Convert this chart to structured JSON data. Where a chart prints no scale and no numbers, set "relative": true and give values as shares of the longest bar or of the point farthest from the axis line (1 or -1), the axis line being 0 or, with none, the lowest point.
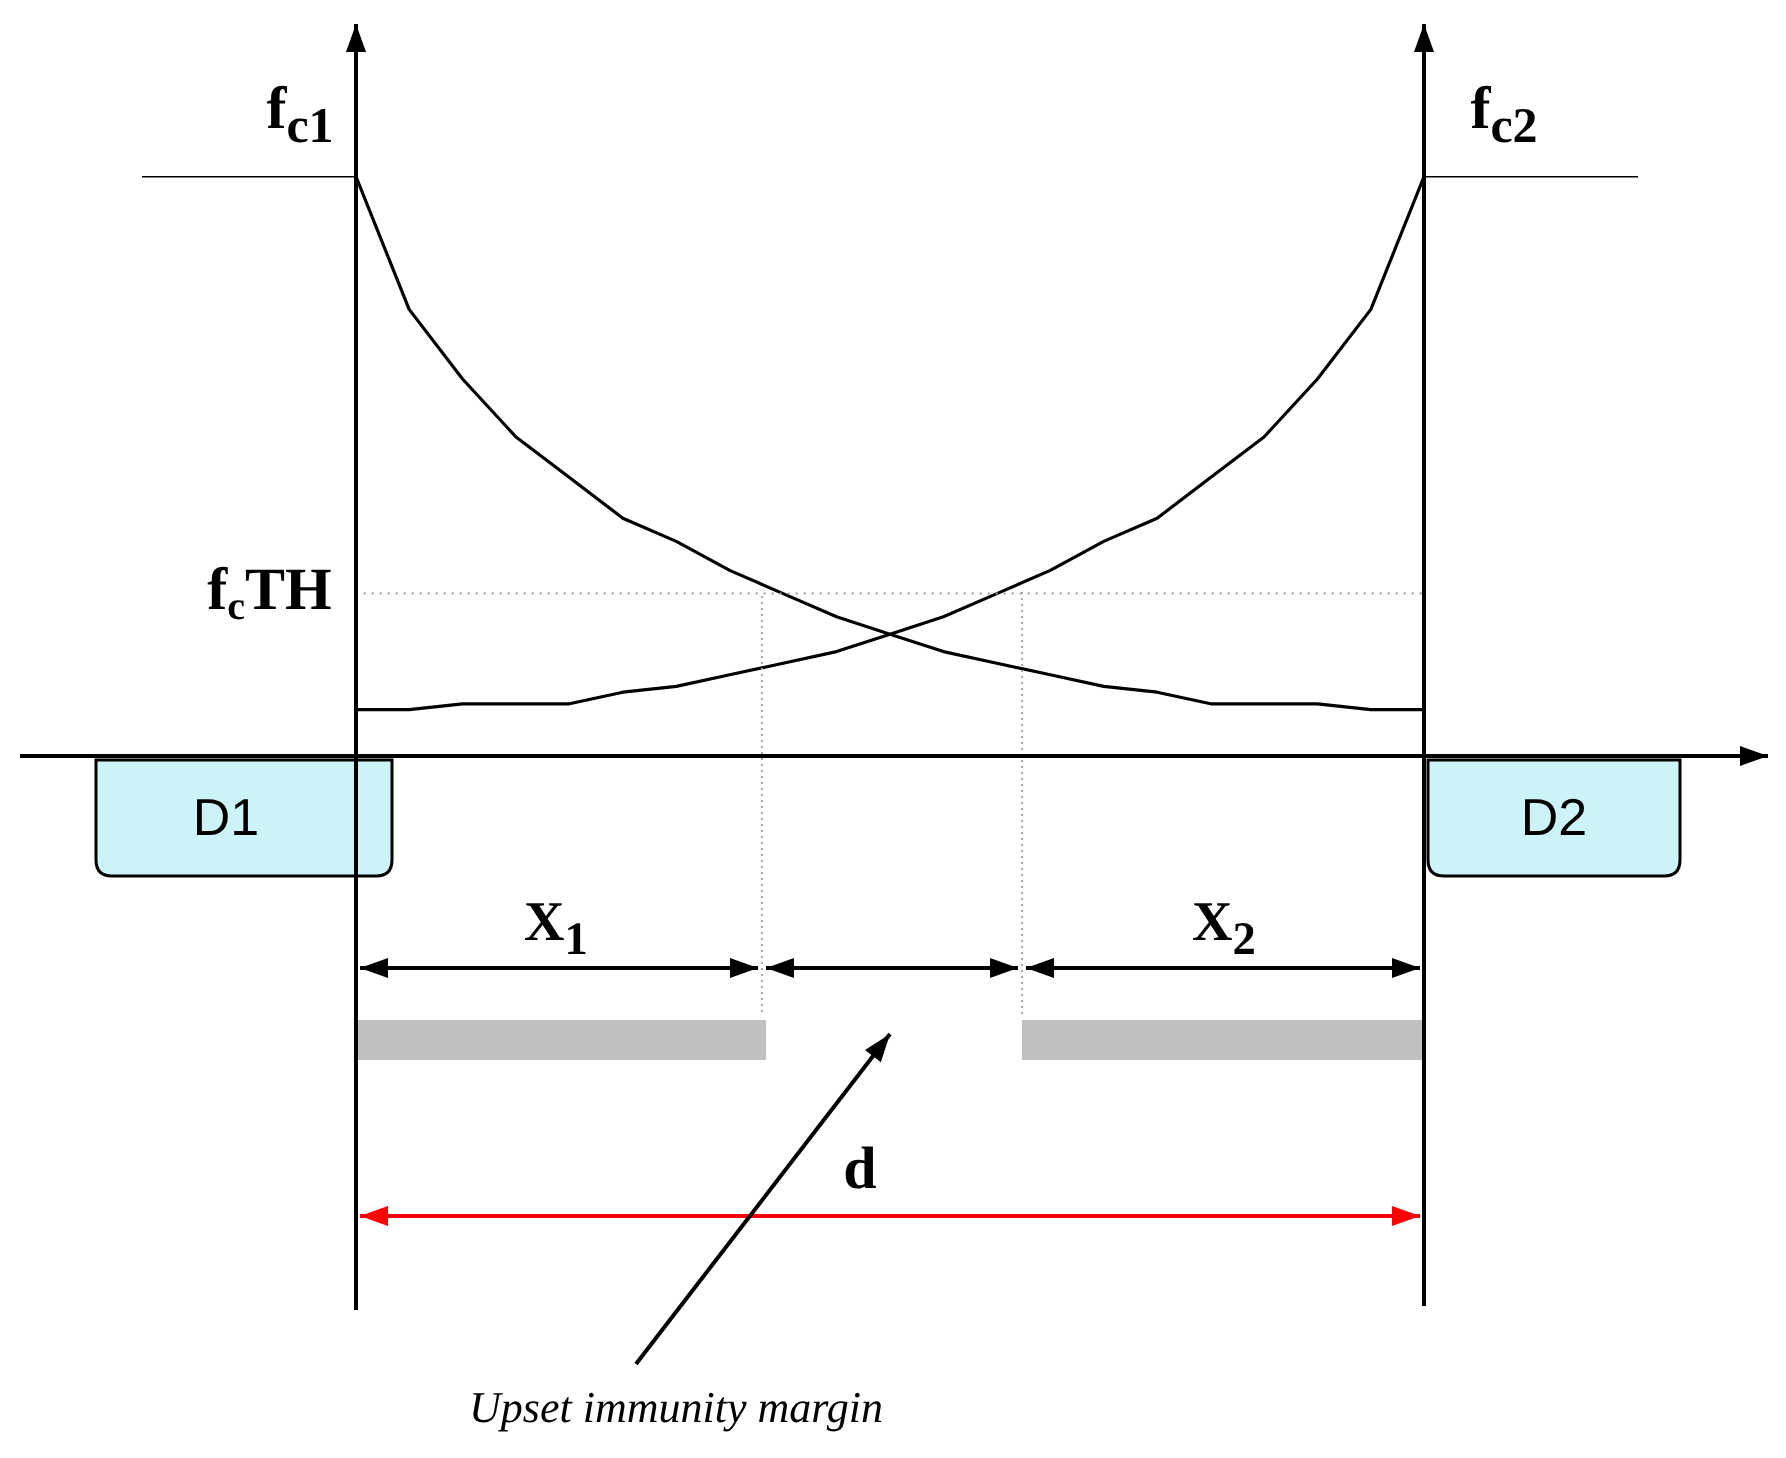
{
  "chart_data": {
    "type": "line",
    "relative": true,
    "categories": [
      null,
      null,
      null,
      null,
      null,
      null,
      null,
      null,
      null,
      null,
      null,
      null,
      null,
      null,
      null,
      null,
      null,
      null,
      null,
      null,
      null,
      null,
      null,
      null,
      null,
      null,
      null,
      null,
      null
    ],
    "series": [
      {
        "color": "#000000",
        "values": [
          1,
          1,
          1,
          1,
          1,
          0.77,
          0.65,
          0.55,
          0.48,
          0.41,
          0.37,
          0.32,
          0.28,
          0.24,
          0.21,
          0.18,
          0.16,
          0.14,
          0.12,
          0.11,
          0.09,
          0.09,
          0.09,
          0.08,
          0.08,
          null,
          null,
          null,
          null
        ]
      },
      {
        "color": "#000000",
        "values": [
          null,
          null,
          null,
          null,
          0.08,
          0.08,
          0.09,
          0.09,
          0.09,
          0.11,
          0.12,
          0.14,
          0.16,
          0.18,
          0.21,
          0.24,
          0.28,
          0.32,
          0.37,
          0.41,
          0.48,
          0.55,
          0.65,
          0.77,
          1,
          1,
          1,
          1,
          1
        ]
      }
    ],
    "marker": "none",
    "line_style": "solid",
    "ref_lines": [
      {
        "axis": "y",
        "value": 0.28,
        "label": "f$_{c}$TH",
        "color": "#999999",
        "line_style": "dotted"
      }
    ],
    "annotations": [
      "f$_{c1}$",
      "f$_{c2}$",
      "D1",
      "D2",
      "X$_{1}$",
      "X$_{2}$",
      "d",
      "Upset immunity margin"
    ]
  }
}
